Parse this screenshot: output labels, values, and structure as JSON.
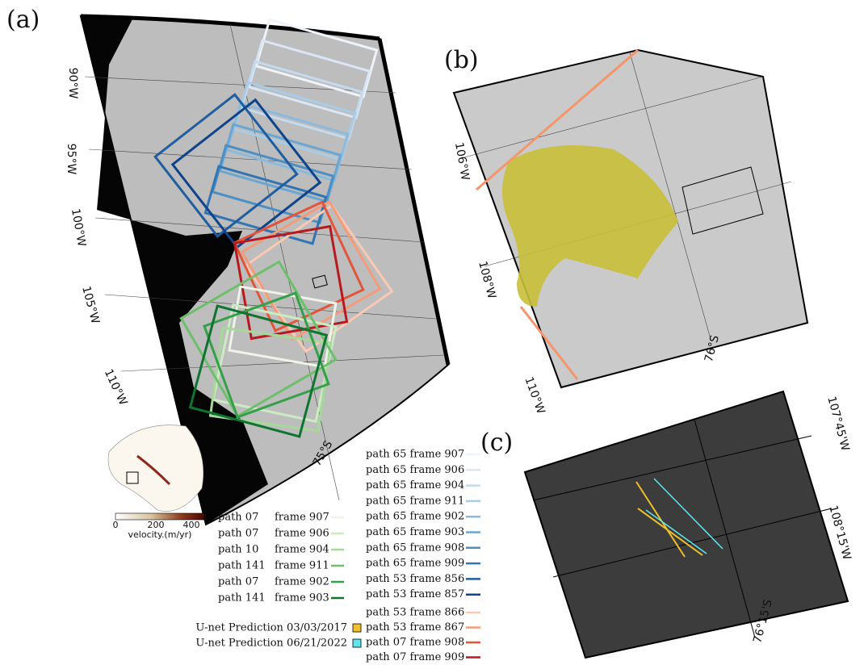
{
  "panels": {
    "a": "(a)",
    "b": "(b)",
    "c": "(c)"
  },
  "panel_a": {
    "graticule_labels": [
      "90°W",
      "95°W",
      "100°W",
      "105°W",
      "110°W",
      "75°S"
    ],
    "colorbar": {
      "ticks": [
        "0",
        "200",
        "400"
      ],
      "label": "velocity.(m/yr)"
    }
  },
  "panel_b": {
    "graticule_labels": [
      "106°W",
      "108°W",
      "110°W",
      "76°S"
    ]
  },
  "panel_c": {
    "graticule_labels": [
      "107°45'W",
      "108°15'W",
      "76°15'S"
    ]
  },
  "legend_green": [
    {
      "path": "path 07",
      "frame": "frame 907",
      "color": "#eef5e8"
    },
    {
      "path": "path 07",
      "frame": "frame 906",
      "color": "#cdebc3"
    },
    {
      "path": "path 10",
      "frame": "frame 904",
      "color": "#a5d99a"
    },
    {
      "path": "path 141",
      "frame": "frame 911",
      "color": "#6dbf6c"
    },
    {
      "path": "path 07",
      "frame": "frame 902",
      "color": "#34a048"
    },
    {
      "path": "path 141",
      "frame": "frame 903",
      "color": "#0e7430"
    }
  ],
  "legend_blue": [
    {
      "label": "path 65 frame 907",
      "color": "#eef3fa"
    },
    {
      "label": "path 65 frame 906",
      "color": "#dae6f4"
    },
    {
      "label": "path 65 frame 904",
      "color": "#c4daee"
    },
    {
      "label": "path 65 frame 911",
      "color": "#a9cce6"
    },
    {
      "label": "path 65 frame 902",
      "color": "#8bbadc"
    },
    {
      "label": "path 65 frame 903",
      "color": "#6aa6d1"
    },
    {
      "label": "path 65 frame 908",
      "color": "#4c8fc4"
    },
    {
      "label": "path 65 frame 909",
      "color": "#3175b3"
    },
    {
      "label": "path 53 frame 856",
      "color": "#1f5ea0"
    },
    {
      "label": "path 53 frame 857",
      "color": "#10448a"
    }
  ],
  "legend_red": [
    {
      "label": "path 53 frame 866",
      "color": "#f9c9b3"
    },
    {
      "label": "path 53 frame 867",
      "color": "#f49b7a"
    },
    {
      "label": "path 07 frame 908",
      "color": "#e2553b"
    },
    {
      "label": "path 07 frame 909",
      "color": "#b8191e"
    }
  ],
  "legend_unet": [
    {
      "label": "U-net Prediction 03/03/2017",
      "color": "#f0c02c"
    },
    {
      "label": "U-net Prediction 06/21/2022",
      "color": "#5fe5ee"
    }
  ]
}
